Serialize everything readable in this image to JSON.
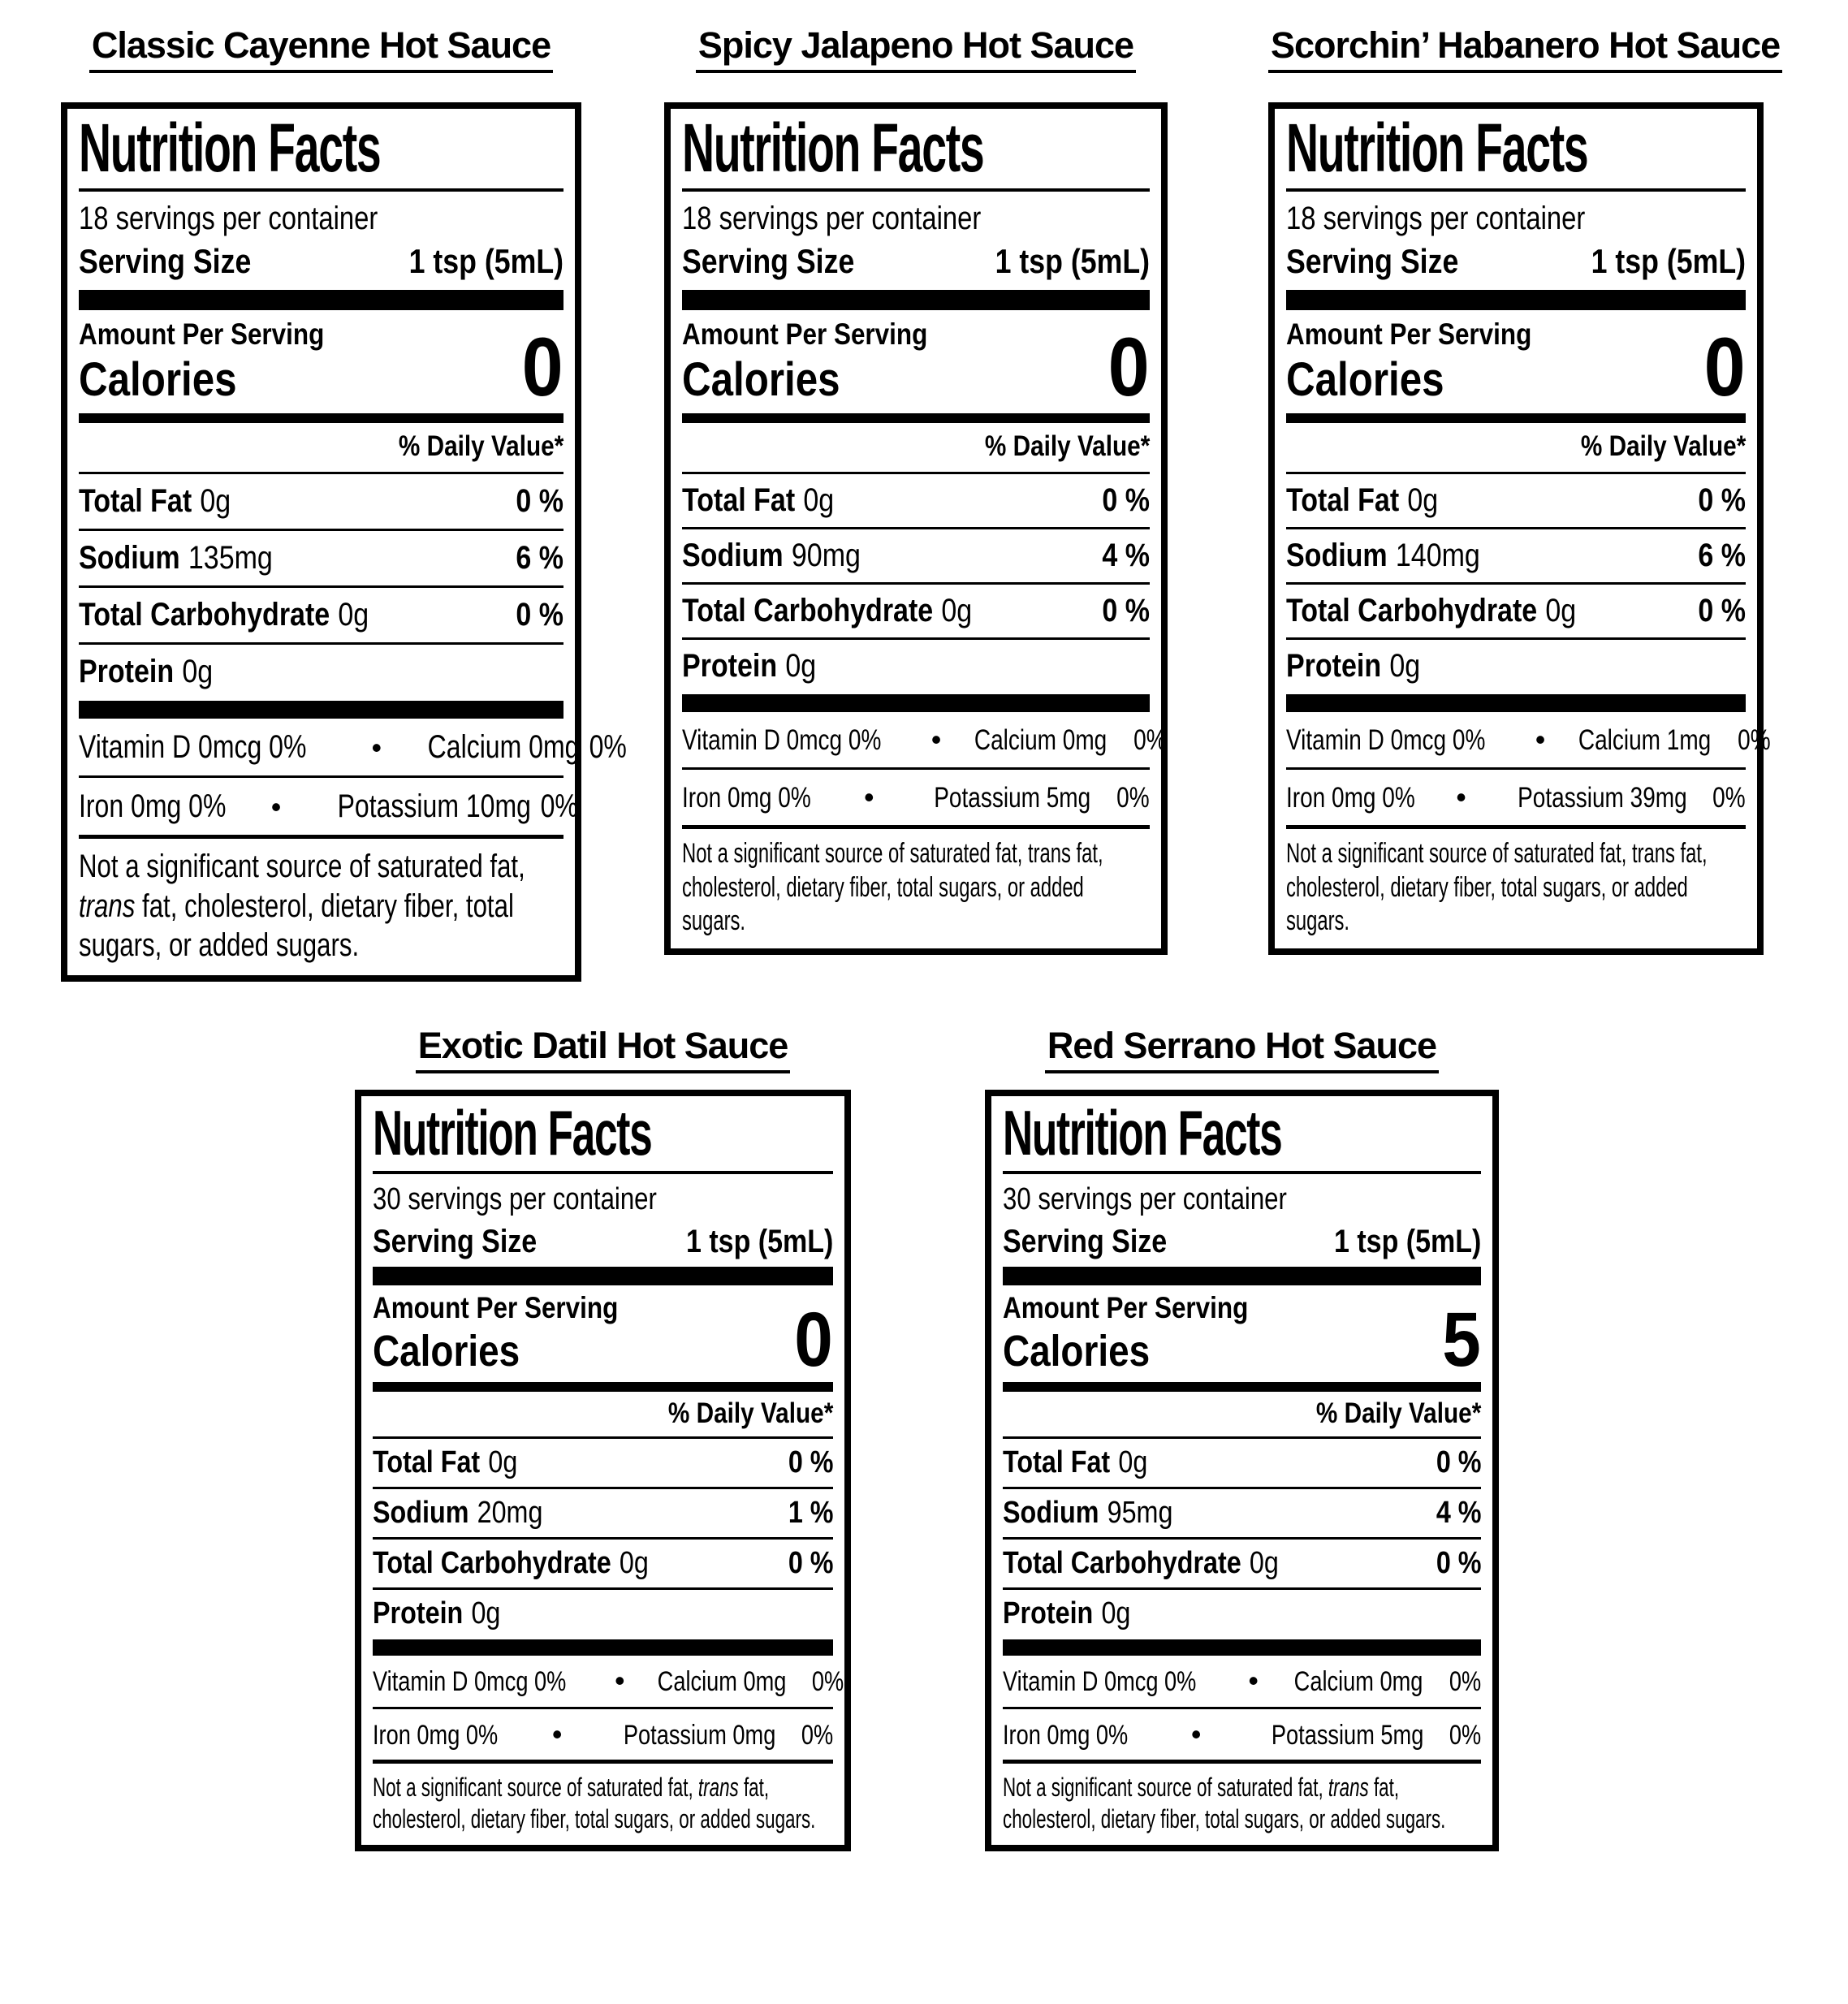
{
  "page": {
    "background": "#ffffff",
    "text_color": "#000000"
  },
  "labels": [
    {
      "title": "Classic Cayenne Hot Sauce",
      "heading": "Nutrition Facts",
      "servings": "18 servings per container",
      "serving_size": {
        "label": "Serving Size",
        "value": "1 tsp (5mL)"
      },
      "amount_per_serving": "Amount Per Serving",
      "calories": {
        "label": "Calories",
        "value": "0"
      },
      "daily_value_header": "% Daily Value*",
      "nutrients": [
        {
          "name": "Total Fat",
          "amount": "0g",
          "dv": "0 %"
        },
        {
          "name": "Sodium",
          "amount": "135mg",
          "dv": "6 %"
        },
        {
          "name": "Total Carbohydrate",
          "amount": "0g",
          "dv": "0 %"
        },
        {
          "name": "Protein",
          "amount": "0g",
          "dv": ""
        }
      ],
      "micronutrients": [
        {
          "left": "Vitamin D 0mcg 0%",
          "bullet": "•",
          "right": "Calcium 0mg",
          "right_dv": "0%"
        },
        {
          "left": "Iron 0mg 0%",
          "bullet": "•",
          "right": "Potassium 10mg",
          "right_dv": "0%"
        }
      ],
      "footnote": {
        "pre": "Not a significant source of saturated fat, ",
        "trans_word": "trans",
        "post": " fat, cholesterol, dietary fiber, total sugars, or added sugars.",
        "trans_style": "italic"
      }
    },
    {
      "title": "Spicy Jalapeno Hot Sauce",
      "heading": "Nutrition Facts",
      "servings": "18 servings per container",
      "serving_size": {
        "label": "Serving Size",
        "value": "1 tsp (5mL)"
      },
      "amount_per_serving": "Amount Per Serving",
      "calories": {
        "label": "Calories",
        "value": "0"
      },
      "daily_value_header": "% Daily Value*",
      "nutrients": [
        {
          "name": "Total Fat",
          "amount": "0g",
          "dv": "0 %"
        },
        {
          "name": "Sodium",
          "amount": "90mg",
          "dv": "4 %"
        },
        {
          "name": "Total Carbohydrate",
          "amount": "0g",
          "dv": "0 %"
        },
        {
          "name": "Protein",
          "amount": "0g",
          "dv": ""
        }
      ],
      "micronutrients": [
        {
          "left": "Vitamin D 0mcg 0%",
          "bullet": "•",
          "right": "Calcium 0mg",
          "right_dv": "0%"
        },
        {
          "left": "Iron 0mg 0%",
          "bullet": "•",
          "right": "Potassium 5mg",
          "right_dv": "0%"
        }
      ],
      "footnote": {
        "pre": "Not a significant source of saturated fat, ",
        "trans_word": "trans",
        "post": " fat, cholesterol, dietary fiber, total sugars, or added sugars.",
        "trans_style": "plain"
      }
    },
    {
      "title": "Scorchin’ Habanero Hot Sauce",
      "heading": "Nutrition Facts",
      "servings": "18 servings per container",
      "serving_size": {
        "label": "Serving Size",
        "value": "1 tsp (5mL)"
      },
      "amount_per_serving": "Amount Per Serving",
      "calories": {
        "label": "Calories",
        "value": "0"
      },
      "daily_value_header": "% Daily Value*",
      "nutrients": [
        {
          "name": "Total Fat",
          "amount": "0g",
          "dv": "0 %"
        },
        {
          "name": "Sodium",
          "amount": "140mg",
          "dv": "6 %"
        },
        {
          "name": "Total Carbohydrate",
          "amount": "0g",
          "dv": "0 %"
        },
        {
          "name": "Protein",
          "amount": "0g",
          "dv": ""
        }
      ],
      "micronutrients": [
        {
          "left": "Vitamin D 0mcg 0%",
          "bullet": "•",
          "right": "Calcium 1mg",
          "right_dv": "0%"
        },
        {
          "left": "Iron 0mg 0%",
          "bullet": "•",
          "right": "Potassium 39mg",
          "right_dv": "0%"
        }
      ],
      "footnote": {
        "pre": "Not a significant source of saturated fat, ",
        "trans_word": "trans",
        "post": " fat, cholesterol, dietary fiber, total sugars, or added sugars.",
        "trans_style": "plain"
      }
    },
    {
      "title": "Exotic Datil Hot Sauce",
      "heading": "Nutrition Facts",
      "servings": "30 servings per container",
      "serving_size": {
        "label": "Serving Size",
        "value": "1 tsp (5mL)"
      },
      "amount_per_serving": "Amount Per Serving",
      "calories": {
        "label": "Calories",
        "value": "0"
      },
      "daily_value_header": "% Daily Value*",
      "nutrients": [
        {
          "name": "Total Fat",
          "amount": "0g",
          "dv": "0 %"
        },
        {
          "name": "Sodium",
          "amount": "20mg",
          "dv": "1 %"
        },
        {
          "name": "Total Carbohydrate",
          "amount": "0g",
          "dv": "0 %"
        },
        {
          "name": "Protein",
          "amount": "0g",
          "dv": ""
        }
      ],
      "micronutrients": [
        {
          "left": "Vitamin D 0mcg 0%",
          "bullet": "•",
          "right": "Calcium 0mg",
          "right_dv": "0%"
        },
        {
          "left": "Iron 0mg 0%",
          "bullet": "•",
          "right": "Potassium 0mg",
          "right_dv": "0%"
        }
      ],
      "footnote": {
        "pre": "Not a significant source of saturated fat, ",
        "trans_word": "trans",
        "post": " fat, cholesterol, dietary fiber, total sugars, or added sugars.",
        "trans_style": "italic"
      }
    },
    {
      "title": "Red Serrano Hot Sauce",
      "heading": "Nutrition Facts",
      "servings": "30 servings per container",
      "serving_size": {
        "label": "Serving Size",
        "value": "1 tsp (5mL)"
      },
      "amount_per_serving": "Amount Per Serving",
      "calories": {
        "label": "Calories",
        "value": "5"
      },
      "daily_value_header": "% Daily Value*",
      "nutrients": [
        {
          "name": "Total Fat",
          "amount": "0g",
          "dv": "0 %"
        },
        {
          "name": "Sodium",
          "amount": "95mg",
          "dv": "4 %"
        },
        {
          "name": "Total Carbohydrate",
          "amount": "0g",
          "dv": "0 %"
        },
        {
          "name": "Protein",
          "amount": "0g",
          "dv": ""
        }
      ],
      "micronutrients": [
        {
          "left": "Vitamin D 0mcg 0%",
          "bullet": "•",
          "right": "Calcium 0mg",
          "right_dv": "0%"
        },
        {
          "left": "Iron 0mg 0%",
          "bullet": "•",
          "right": "Potassium 5mg",
          "right_dv": "0%"
        }
      ],
      "footnote": {
        "pre": "Not a significant source of saturated fat, ",
        "trans_word": "trans",
        "post": " fat, cholesterol, dietary fiber, total sugars, or added sugars.",
        "trans_style": "italic"
      }
    }
  ]
}
